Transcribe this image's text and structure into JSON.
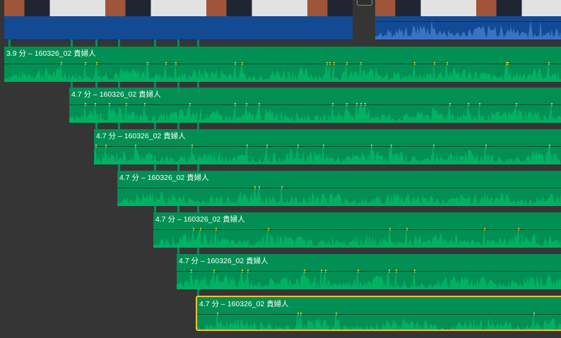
{
  "video_track": {
    "clips": [
      {
        "name": "video-clip-1"
      },
      {
        "name": "video-clip-2"
      }
    ],
    "colors": {
      "video": "#124b93",
      "waveform": "#3b73c4"
    }
  },
  "transition": {
    "icon": "transition-icon"
  },
  "audio_clips": [
    {
      "label": "3.9 分 – 160326_02 貴婦人",
      "selected": false
    },
    {
      "label": "4.7 分 – 160326_02 貴婦人",
      "selected": false
    },
    {
      "label": "4.7 分 – 160326_02 貴婦人",
      "selected": false
    },
    {
      "label": "4.7 分 – 160326_02 貴婦人",
      "selected": false
    },
    {
      "label": "4.7 分 – 160326_02 貴婦人",
      "selected": false
    },
    {
      "label": "4.7 分 – 160326_02 貴婦人",
      "selected": false
    },
    {
      "label": "4.7 分 – 160326_02 貴婦人",
      "selected": true
    }
  ],
  "colors": {
    "audio": "#018f54",
    "waveform": "#00b063",
    "peak": "#f2c230",
    "selection": "#f2c230"
  }
}
